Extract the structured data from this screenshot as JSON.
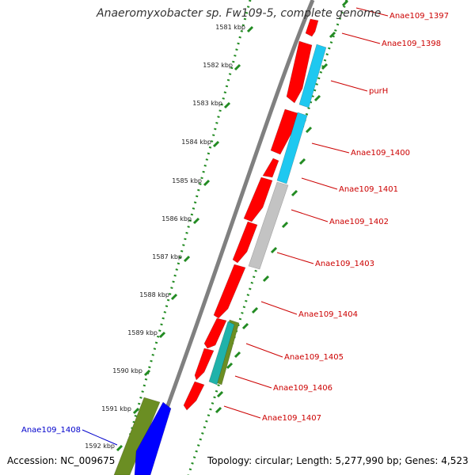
{
  "title": "Anaeromyxobacter sp. Fw109-5, complete genome",
  "footer": {
    "accession": "Accession: NC_009675",
    "summary": "Topology: circular; Length: 5,277,990 bp; Genes: 4,523"
  },
  "colors": {
    "forward_cds": "#ff0000",
    "reverse_cds": "#0000ff",
    "cog_cyan": "#1ec8f0",
    "cog_grey": "#c3c3c3",
    "cog_olive": "#6b8e23",
    "cog_teal": "#20b2aa",
    "backbone": "#808080",
    "ticks": "#228b22",
    "label_red": "#cc0000",
    "label_blue": "#0000cc"
  },
  "ticks": [
    {
      "label": "1581 kbp"
    },
    {
      "label": "1582 kbp"
    },
    {
      "label": "1583 kbp"
    },
    {
      "label": "1584 kbp"
    },
    {
      "label": "1585 kbp"
    },
    {
      "label": "1586 kbp"
    },
    {
      "label": "1587 kbp"
    },
    {
      "label": "1588 kbp"
    },
    {
      "label": "1589 kbp"
    },
    {
      "label": "1590 kbp"
    },
    {
      "label": "1591 kbp"
    },
    {
      "label": "1592 kbp"
    }
  ],
  "gene_labels": [
    {
      "text": "Anae109_1397",
      "color": "red"
    },
    {
      "text": "Anae109_1398",
      "color": "red"
    },
    {
      "text": "purH",
      "color": "red"
    },
    {
      "text": "Anae109_1400",
      "color": "red"
    },
    {
      "text": "Anae109_1401",
      "color": "red"
    },
    {
      "text": "Anae109_1402",
      "color": "red"
    },
    {
      "text": "Anae109_1403",
      "color": "red"
    },
    {
      "text": "Anae109_1404",
      "color": "red"
    },
    {
      "text": "Anae109_1405",
      "color": "red"
    },
    {
      "text": "Anae109_1406",
      "color": "red"
    },
    {
      "text": "Anae109_1407",
      "color": "red"
    },
    {
      "text": "Anae109_1408",
      "color": "blue"
    }
  ]
}
